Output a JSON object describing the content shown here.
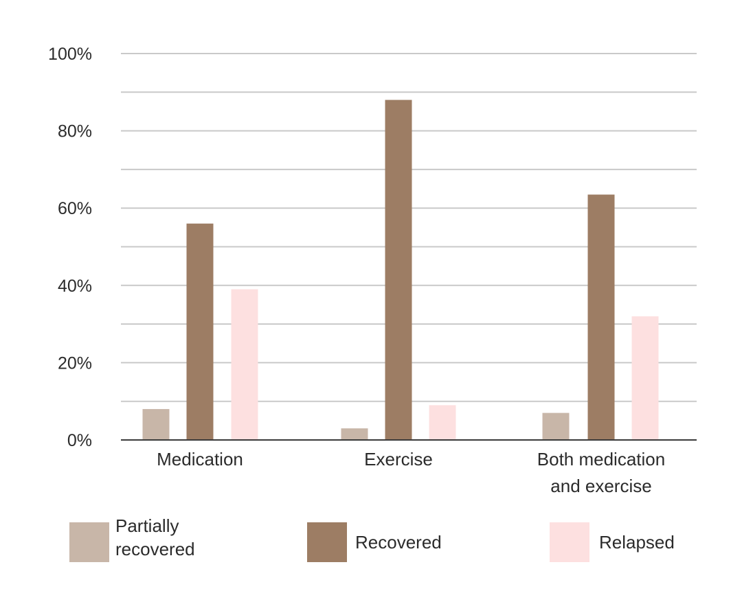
{
  "chart_data": {
    "type": "bar",
    "title": "",
    "xlabel": "",
    "ylabel": "",
    "ylim": [
      0,
      100
    ],
    "yticks": [
      "0%",
      "20%",
      "40%",
      "60%",
      "80%",
      "100%"
    ],
    "gridlines_every": 10,
    "grid": true,
    "legend_position": "bottom",
    "categories": [
      [
        "Medication"
      ],
      [
        "Exercise"
      ],
      [
        "Both medication",
        "and exercise"
      ]
    ],
    "series": [
      {
        "name": [
          "Partially",
          "recovered"
        ],
        "color": "#c8b6a8",
        "values": [
          8,
          3,
          7
        ]
      },
      {
        "name": [
          "Recovered"
        ],
        "color": "#9d7d64",
        "values": [
          56,
          88,
          63.5
        ]
      },
      {
        "name": [
          "Relapsed"
        ],
        "color": "#fde0e0",
        "values": [
          39,
          9,
          32
        ]
      }
    ]
  }
}
